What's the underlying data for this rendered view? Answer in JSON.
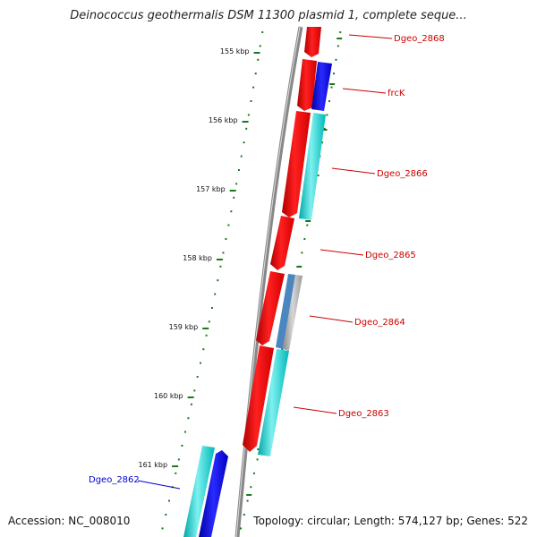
{
  "title": "Deinococcus geothermalis DSM 11300 plasmid 1, complete seque...",
  "footer": {
    "accession": "Accession: NC_008010",
    "summary": "Topology: circular; Length: 574,127 bp; Genes: 522"
  },
  "scale_ticks": [
    "155 kbp",
    "156 kbp",
    "157 kbp",
    "158 kbp",
    "159 kbp",
    "160 kbp",
    "161 kbp"
  ],
  "gene_labels": [
    {
      "text": "Dgeo_2868",
      "color": "#cc0000"
    },
    {
      "text": "frcK",
      "color": "#cc0000"
    },
    {
      "text": "Dgeo_2866",
      "color": "#cc0000"
    },
    {
      "text": "Dgeo_2865",
      "color": "#cc0000"
    },
    {
      "text": "Dgeo_2864",
      "color": "#cc0000"
    },
    {
      "text": "Dgeo_2863",
      "color": "#cc0000"
    },
    {
      "text": "Dgeo_2862",
      "color": "#0000cc"
    }
  ],
  "colors": {
    "cds": "#ff0000",
    "gc_skew": "#00cccc",
    "other_feature": "#0000ff",
    "backbone": "#888888",
    "ticks": "#1a7a1a"
  }
}
